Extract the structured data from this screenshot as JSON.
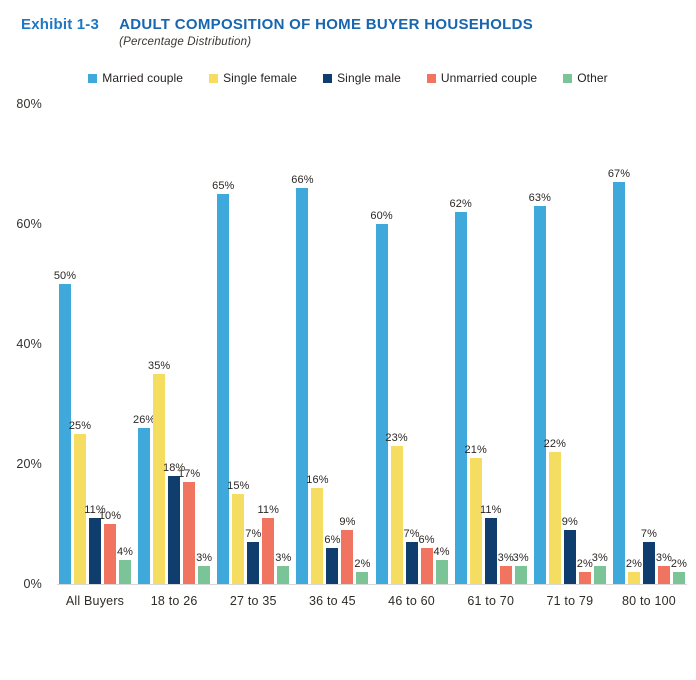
{
  "header": {
    "exhibit_label": "Exhibit 1-3",
    "title": "ADULT COMPOSITION OF HOME BUYER HOUSEHOLDS",
    "subtitle": "(Percentage Distribution)"
  },
  "colors": {
    "exhibit_blue": "#1e78c4",
    "title_blue": "#1766af",
    "axis_line": "#d8d8d8",
    "label_text": "#2b2724"
  },
  "chart_data": {
    "type": "bar",
    "title": "ADULT COMPOSITION OF HOME BUYER HOUSEHOLDS",
    "subtitle": "(Percentage Distribution)",
    "categories": [
      "All Buyers",
      "18 to 26",
      "27 to 35",
      "36 to 45",
      "46 to 60",
      "61 to 70",
      "71 to 79",
      "80 to 100"
    ],
    "series": [
      {
        "name": "Married couple",
        "color": "#3fa9dc",
        "values": [
          50,
          26,
          65,
          66,
          60,
          62,
          63,
          67
        ]
      },
      {
        "name": "Single female",
        "color": "#f5dd62",
        "values": [
          25,
          35,
          15,
          16,
          23,
          21,
          22,
          2
        ]
      },
      {
        "name": "Single male",
        "color": "#0e3d6e",
        "values": [
          11,
          18,
          7,
          6,
          7,
          11,
          9,
          7
        ]
      },
      {
        "name": "Unmarried couple",
        "color": "#f0745f",
        "values": [
          10,
          17,
          11,
          9,
          6,
          3,
          2,
          3
        ]
      },
      {
        "name": "Other",
        "color": "#7bc498",
        "values": [
          4,
          3,
          3,
          2,
          4,
          3,
          3,
          2
        ]
      }
    ],
    "value_suffix": "%",
    "ylim": [
      0,
      80
    ],
    "y_ticks": [
      "0%",
      "20%",
      "40%",
      "60%",
      "80%"
    ],
    "grid": false,
    "legend_position": "top",
    "xlabel": "",
    "ylabel": ""
  }
}
